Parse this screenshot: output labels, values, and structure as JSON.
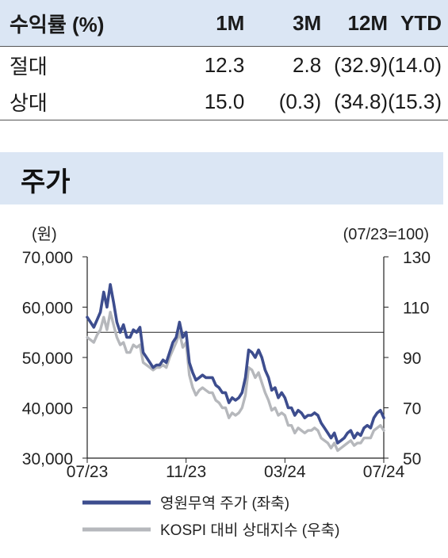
{
  "returns_table": {
    "header": [
      "수익률 (%)",
      "1M",
      "3M",
      "12M",
      "YTD"
    ],
    "rows": [
      {
        "label": "절대",
        "values": [
          "12.3",
          "2.8",
          "(32.9)",
          "(14.0)"
        ]
      },
      {
        "label": "상대",
        "values": [
          "15.0",
          "(0.3)",
          "(34.8)",
          "(15.3)"
        ]
      }
    ]
  },
  "section": {
    "title": "주가"
  },
  "colors": {
    "primary_series": "#3d4d8e",
    "secondary_series": "#b6b8bc",
    "header_bg": "#dbe6f4"
  },
  "chart_data": {
    "type": "line",
    "left_unit": "(원)",
    "right_unit": "(07/23=100)",
    "ylim_left": [
      30000,
      70000
    ],
    "ylim_right": [
      50,
      130
    ],
    "y_ticks_left": [
      "70,000",
      "60,000",
      "50,000",
      "40,000",
      "30,000"
    ],
    "y_ticks_right": [
      "130",
      "110",
      "90",
      "70",
      "50"
    ],
    "x_tick_labels": [
      "07/23",
      "11/23",
      "03/24",
      "07/24"
    ],
    "reference_line_right": 100,
    "series": [
      {
        "name": "영원무역 주가 (좌축)",
        "axis": "left",
        "values": [
          58000,
          57000,
          56000,
          57500,
          59000,
          63000,
          60000,
          64500,
          61000,
          57000,
          55000,
          56500,
          54000,
          54000,
          55500,
          55000,
          56000,
          51000,
          50000,
          49000,
          48000,
          48500,
          48500,
          49500,
          49000,
          51000,
          53000,
          54000,
          57000,
          54000,
          55000,
          49000,
          47000,
          45500,
          46000,
          46500,
          46000,
          46000,
          46000,
          44500,
          44000,
          43000,
          43000,
          41000,
          42000,
          41500,
          42000,
          43000,
          46000,
          51500,
          51000,
          50000,
          51500,
          50000,
          47500,
          46000,
          43500,
          44000,
          42000,
          43000,
          42000,
          40000,
          40000,
          38500,
          39500,
          39000,
          38000,
          38500,
          38500,
          39000,
          38500,
          37000,
          36000,
          35000,
          34000,
          35000,
          33000,
          33500,
          34000,
          35000,
          35500,
          34000,
          35000,
          34500,
          36000,
          36500,
          36000,
          38000,
          39000,
          39500,
          38000
        ]
      },
      {
        "name": "KOSPI 대비 상대지수 (우축)",
        "axis": "right",
        "values": [
          98,
          97,
          96,
          99,
          101,
          106,
          101,
          108,
          103,
          98,
          95,
          96,
          92,
          92,
          95,
          94,
          95,
          88,
          87,
          86,
          85,
          86,
          86,
          87,
          86,
          90,
          93,
          96,
          100,
          94,
          96,
          83,
          78,
          75,
          77,
          78,
          77,
          76,
          76,
          73,
          72,
          70,
          70,
          66,
          68,
          67,
          68,
          70,
          75,
          86,
          85,
          82,
          84,
          80,
          76,
          73,
          69,
          70,
          67,
          68,
          67,
          63,
          63,
          60,
          62,
          61,
          60,
          61,
          61,
          62,
          61,
          58,
          57,
          56,
          54,
          56,
          53,
          54,
          55,
          56,
          57,
          55,
          56,
          56,
          58,
          58,
          58,
          61,
          62,
          63,
          61
        ]
      }
    ]
  }
}
